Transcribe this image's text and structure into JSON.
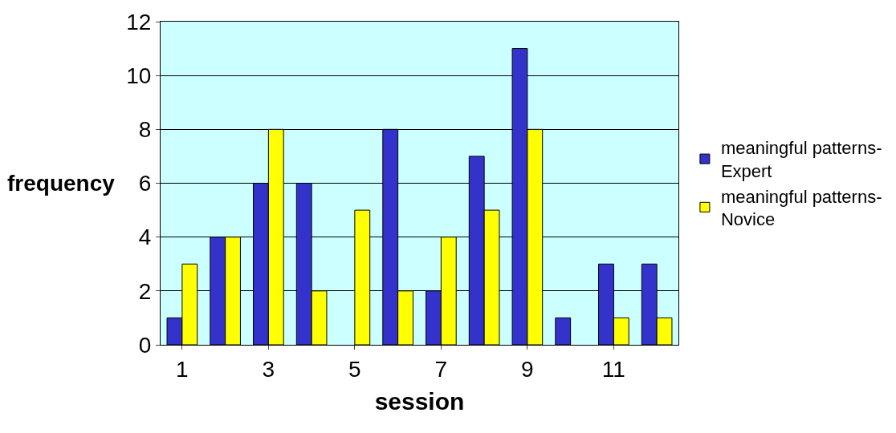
{
  "chart_data": {
    "type": "bar",
    "xlabel": "session",
    "ylabel": "frequency",
    "categories": [
      "1",
      null,
      "3",
      null,
      "5",
      null,
      "7",
      null,
      "9",
      null,
      "11",
      null
    ],
    "series": [
      {
        "name": "meaningful patterns-Expert",
        "color": "#3333cc",
        "values": [
          1,
          4,
          6,
          6,
          0,
          8,
          2,
          7,
          11,
          1,
          3,
          3
        ]
      },
      {
        "name": "meaningful patterns-Novice",
        "color": "#ffff00",
        "values": [
          3,
          4,
          8,
          2,
          5,
          2,
          4,
          5,
          8,
          0,
          1,
          1
        ]
      }
    ],
    "ylim": [
      0,
      12
    ],
    "yticks": [
      0,
      2,
      4,
      6,
      8,
      10,
      12
    ],
    "grid": "y",
    "legend": "right"
  }
}
